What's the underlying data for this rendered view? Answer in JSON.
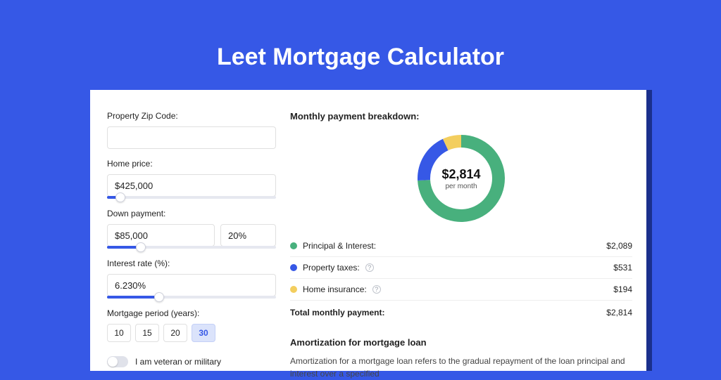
{
  "page": {
    "title": "Leet Mortgage Calculator",
    "colors": {
      "page_bg": "#3658e6",
      "panel_bg": "#ffffff",
      "panel_shadow": "#1a2f8c",
      "accent": "#3658e6",
      "input_border": "#e0e0e0",
      "slider_track": "#e6e8f0"
    }
  },
  "form": {
    "zip": {
      "label": "Property Zip Code:",
      "value": ""
    },
    "home_price": {
      "label": "Home price:",
      "value": "$425,000",
      "slider_pct": 8
    },
    "down_payment": {
      "label": "Down payment:",
      "amount": "$85,000",
      "percent": "20%",
      "slider_pct": 20
    },
    "interest_rate": {
      "label": "Interest rate (%):",
      "value": "6.230%",
      "slider_pct": 31
    },
    "period": {
      "label": "Mortgage period (years):",
      "options": [
        "10",
        "15",
        "20",
        "30"
      ],
      "selected": "30"
    },
    "veteran": {
      "label": "I am veteran or military",
      "checked": false
    }
  },
  "breakdown": {
    "title": "Monthly payment breakdown:",
    "donut": {
      "center_value": "$2,814",
      "center_label": "per month",
      "thickness": 18,
      "radius_outer": 62,
      "segments": [
        {
          "label": "Principal & Interest:",
          "value": "$2,089",
          "amount": 2089,
          "color": "#48b07d"
        },
        {
          "label": "Property taxes:",
          "value": "$531",
          "amount": 531,
          "color": "#3658e6",
          "info": true
        },
        {
          "label": "Home insurance:",
          "value": "$194",
          "amount": 194,
          "color": "#f3ce5e",
          "info": true
        }
      ]
    },
    "total": {
      "label": "Total monthly payment:",
      "value": "$2,814"
    }
  },
  "amortization": {
    "title": "Amortization for mortgage loan",
    "body": "Amortization for a mortgage loan refers to the gradual repayment of the loan principal and interest over a specified"
  }
}
